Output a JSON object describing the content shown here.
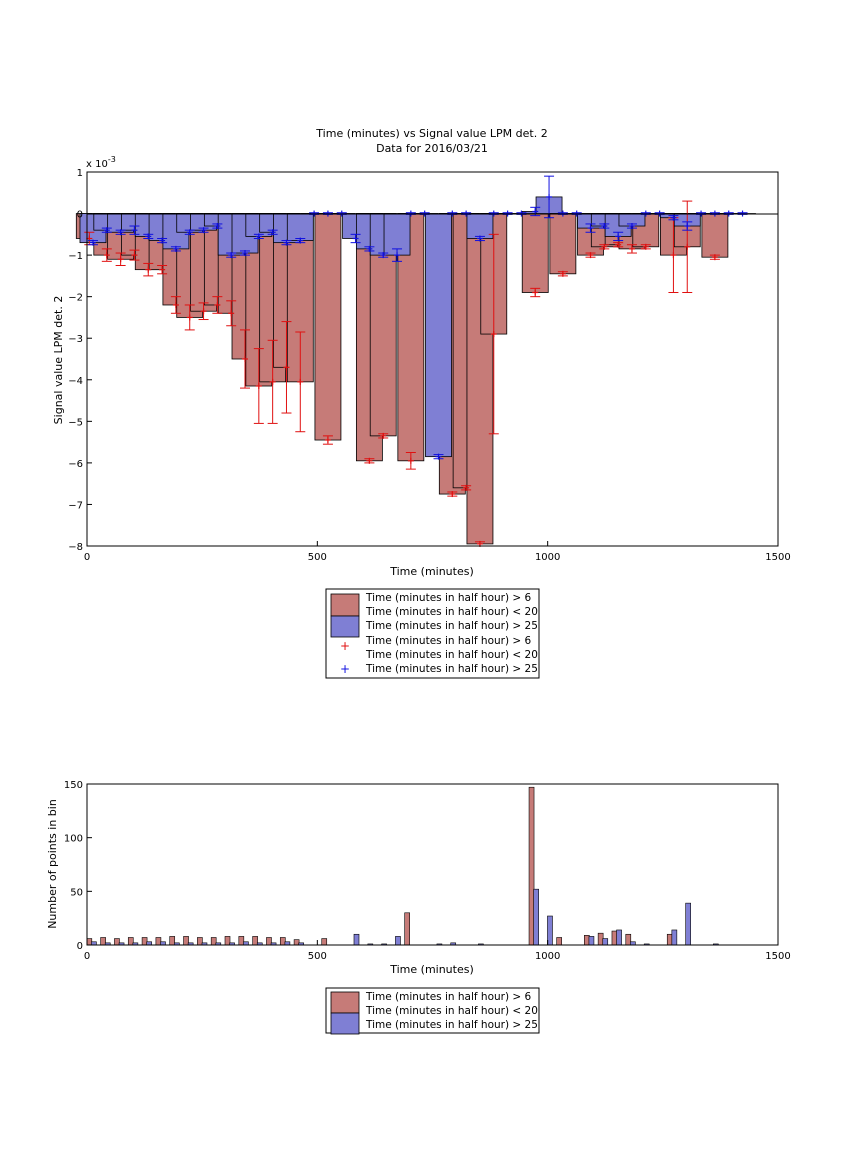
{
  "colors": {
    "red_series": "#c67b78",
    "blue_series": "#7f7fd4",
    "red_marker": "#e01010",
    "blue_marker": "#1010e0"
  },
  "chart_data": [
    {
      "type": "bar",
      "title": "Time (minutes) vs Signal value LPM det. 2",
      "subtitle": "Data for 2016/03/21",
      "xlabel": "Time (minutes)",
      "ylabel": "Signal value LPM det. 2",
      "y_exponent": "x 10",
      "y_exponent_power": "-3",
      "xlim": [
        0,
        1500
      ],
      "ylim": [
        -8,
        1
      ],
      "xticks": [
        "0",
        "500",
        "1000",
        "1500"
      ],
      "yticks": [
        "1",
        "0",
        "−1",
        "−2",
        "−3",
        "−4",
        "−5",
        "−6",
        "−7",
        "−8"
      ],
      "grid": false,
      "legend_position": "below",
      "legend": [
        "Time (minutes in half hour) > 6",
        "Time (minutes in half hour) < 20",
        "Time (minutes in half hour) > 25",
        "Time (minutes in half hour) > 6",
        "Time (minutes in half hour) < 20",
        "Time (minutes in half hour) > 25"
      ],
      "series": [
        {
          "color": "red",
          "x": [
            5,
            43,
            73,
            103,
            133,
            163,
            193,
            223,
            253,
            283,
            313,
            343,
            373,
            403,
            433,
            463,
            523,
            613,
            643,
            703,
            793,
            823,
            853,
            883,
            973,
            1033,
            1093,
            1123,
            1153,
            1183,
            1213,
            1273,
            1303,
            1363
          ],
          "values": [
            -0.6,
            -1.0,
            -1.1,
            -1.0,
            -1.35,
            -1.35,
            -2.2,
            -2.5,
            -2.35,
            -2.2,
            -2.4,
            -3.5,
            -4.15,
            -4.05,
            -3.7,
            -4.05,
            -5.45,
            -5.95,
            -5.35,
            -5.95,
            -6.75,
            -6.6,
            -7.95,
            -2.9,
            -1.9,
            -1.45,
            -1.0,
            -0.8,
            -0.75,
            -0.85,
            -0.8,
            -1.0,
            -0.8,
            -1.05
          ],
          "errors": [
            0.15,
            0.15,
            0.15,
            0.12,
            0.15,
            0.1,
            0.2,
            0.3,
            0.2,
            0.2,
            0.3,
            0.7,
            0.9,
            1.0,
            1.1,
            1.2,
            0.1,
            0.05,
            0.05,
            0.2,
            0.05,
            0.05,
            0.05,
            2.4,
            0.1,
            0.05,
            0.05,
            0.05,
            0.05,
            0.1,
            0.05,
            0.9,
            1.1,
            0.05
          ]
        },
        {
          "color": "blue",
          "x": [
            13,
            43,
            73,
            103,
            133,
            163,
            193,
            223,
            253,
            283,
            313,
            343,
            373,
            403,
            433,
            463,
            493,
            523,
            553,
            583,
            613,
            643,
            673,
            703,
            733,
            763,
            793,
            823,
            853,
            883,
            913,
            943,
            973,
            1003,
            1033,
            1063,
            1093,
            1123,
            1153,
            1183,
            1213,
            1243,
            1273,
            1303,
            1333,
            1363,
            1393,
            1423
          ],
          "values": [
            -0.7,
            -0.4,
            -0.45,
            -0.4,
            -0.55,
            -0.65,
            -0.85,
            -0.45,
            -0.4,
            -0.3,
            -1.0,
            -0.95,
            -0.55,
            -0.45,
            -0.7,
            -0.65,
            0.0,
            0.0,
            0.0,
            -0.6,
            -0.85,
            -1.0,
            -1.0,
            0.0,
            0.0,
            -5.85,
            0.0,
            0.0,
            -0.6,
            0.0,
            0.0,
            0.0,
            0.05,
            0.4,
            0.0,
            0.0,
            -0.35,
            -0.3,
            -0.55,
            -0.3,
            0.0,
            0.0,
            -0.1,
            -0.3,
            0.0,
            0.0,
            0.0,
            0.0
          ],
          "errors": [
            0.05,
            0.05,
            0.05,
            0.1,
            0.05,
            0.05,
            0.05,
            0.05,
            0.05,
            0.05,
            0.05,
            0.05,
            0.05,
            0.05,
            0.05,
            0.05,
            0.02,
            0.02,
            0.02,
            0.1,
            0.05,
            0.05,
            0.15,
            0.02,
            0.02,
            0.05,
            0.02,
            0.02,
            0.05,
            0.02,
            0.02,
            0.02,
            0.1,
            0.5,
            0.02,
            0.02,
            0.1,
            0.05,
            0.1,
            0.05,
            0.02,
            0.02,
            0.05,
            0.1,
            0.02,
            0.02,
            0.02,
            0.02
          ]
        }
      ]
    },
    {
      "type": "bar",
      "xlabel": "Time (minutes)",
      "ylabel": "Number of points in bin",
      "xlim": [
        0,
        1500
      ],
      "ylim": [
        0,
        150
      ],
      "xticks": [
        "0",
        "500",
        "1000",
        "1500"
      ],
      "yticks": [
        "0",
        "50",
        "100",
        "150"
      ],
      "grid": false,
      "legend_position": "below",
      "legend": [
        "Time (minutes in half hour) > 6",
        "Time (minutes in half hour) < 20",
        "Time (minutes in half hour) > 25"
      ],
      "series": [
        {
          "color": "red",
          "x": [
            5,
            35,
            65,
            95,
            125,
            155,
            185,
            215,
            245,
            275,
            305,
            335,
            365,
            395,
            425,
            455,
            515,
            695,
            965,
            1025,
            1085,
            1115,
            1145,
            1175,
            1265
          ],
          "values": [
            6,
            7,
            6,
            7,
            7,
            7,
            8,
            8,
            7,
            7,
            8,
            8,
            8,
            7,
            7,
            5,
            6,
            30,
            147,
            7,
            9,
            11,
            13,
            10,
            10
          ]
        },
        {
          "color": "blue",
          "x": [
            15,
            45,
            75,
            105,
            135,
            165,
            195,
            225,
            255,
            285,
            315,
            345,
            375,
            405,
            435,
            465,
            585,
            615,
            645,
            675,
            765,
            795,
            855,
            975,
            1005,
            1095,
            1125,
            1155,
            1185,
            1215,
            1275,
            1305,
            1365
          ],
          "values": [
            3,
            2,
            2,
            2,
            3,
            3,
            2,
            2,
            2,
            2,
            2,
            3,
            2,
            2,
            3,
            2,
            10,
            1,
            1,
            8,
            1,
            2,
            1,
            52,
            27,
            8,
            6,
            14,
            3,
            1,
            14,
            39,
            1
          ]
        }
      ]
    }
  ]
}
